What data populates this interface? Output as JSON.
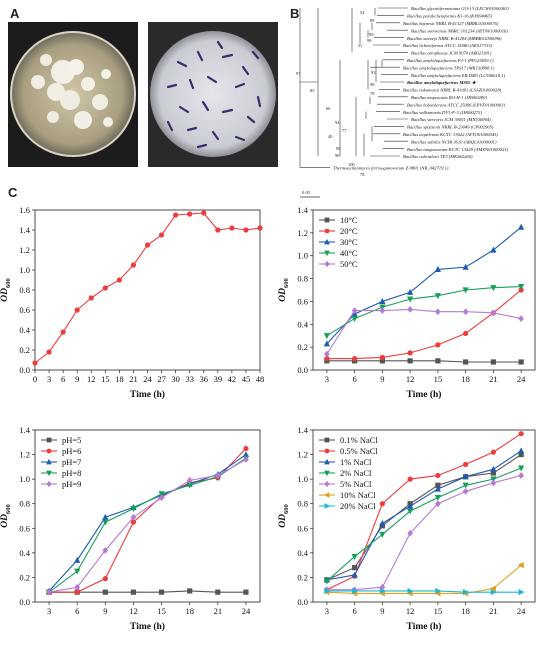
{
  "panel_labels": {
    "a": "A",
    "b": "B",
    "c": "C"
  },
  "tree": {
    "scale_label": "0.05",
    "taxa": [
      "Bacillus glycinifermentans GO-13 (LECW01000063)",
      "Bacillus paralicheniformis KJ-16 (KY694465)",
      "Bacillus haynesii NRRL B-41327 (MRBL01000076)",
      "Bacillus sonorensis NBRC 101234 (AYTN01000016)",
      "Bacillus swezeyi NRRL B-41294 (MRBK01000096)",
      "Bacillus licheniformis ATCC 14580 (AE017333)",
      "Bacillus atrophaeus JCM 9070 (AB021181)",
      "Bacillus amyloliquefaciens PJ-1 (PP125659.1)",
      "Bacillus amyloliquefaciens TPS17 (MK130898.1)",
      "Bacillus amyloliquefaciens EB.DM3 (LC506618.1)",
      "Bacillus amyloliquefaciens MS05 ★",
      "Bacillus nakamurai NRRL B-41091 (LSAZ01000028)",
      "Bacillus mojavensis RO-H-1 (JH600280)",
      "Bacillus halotolerans ATCC 25096 (LPVF01000003)",
      "Bacillus vallismortis DV1-F-3 (JH600273)",
      "Bacillus stercoris JCM 30051 (MN536904)",
      "Bacillus spizizenii NRRL B-23049 (CP002905)",
      "Bacillus tequilensis KCTC 13622 (AYTO01000043)",
      "Bacillus subtilis NCIB 3610 (ABQL01000001)",
      "Bacillus inaquosorum KCTC 13429 (AMXN01000021)",
      "Bacillus cabrialesii TE3 (MK462260)",
      "Thermoactinomyces ferrisoganovorum Z-9801 (NR_042719.1)"
    ],
    "bootstrap": [
      "54",
      "89",
      "99",
      "98",
      "77",
      "97",
      "93",
      "98",
      "78",
      "85",
      "60",
      "94",
      "77",
      "40",
      "98",
      "96",
      "100",
      "78"
    ]
  },
  "chart_data": [
    {
      "type": "line",
      "xlabel": "Time (h)",
      "ylabel": "OD600",
      "xlim": [
        0,
        48
      ],
      "ylim": [
        0,
        1.6
      ],
      "xticks": [
        0,
        3,
        6,
        9,
        12,
        15,
        18,
        21,
        24,
        27,
        30,
        33,
        36,
        39,
        42,
        45,
        48
      ],
      "yticks": [
        "0.0",
        "0.2",
        "0.4",
        "0.6",
        "0.8",
        "1.0",
        "1.2",
        "1.4",
        "1.6"
      ],
      "series": [
        {
          "color": "#ee3b3b",
          "marker": "circle",
          "x": [
            0,
            3,
            6,
            9,
            12,
            15,
            18,
            21,
            24,
            27,
            30,
            33,
            36,
            39,
            42,
            45,
            48
          ],
          "values": [
            0.07,
            0.18,
            0.38,
            0.6,
            0.72,
            0.82,
            0.9,
            1.05,
            1.25,
            1.35,
            1.55,
            1.56,
            1.57,
            1.4,
            1.42,
            1.4,
            1.42
          ]
        }
      ]
    },
    {
      "type": "line",
      "xlabel": "Time (h)",
      "ylabel": "OD600",
      "xlim": [
        1.5,
        25.5
      ],
      "ylim": [
        0,
        1.4
      ],
      "xticks": [
        3,
        6,
        9,
        12,
        15,
        18,
        21,
        24
      ],
      "yticks": [
        "0.0",
        "0.2",
        "0.4",
        "0.6",
        "0.8",
        "1.0",
        "1.2",
        "1.4"
      ],
      "legend_position": "top-left",
      "series": [
        {
          "name": "10°C",
          "color": "#555555",
          "marker": "square",
          "x": [
            3,
            6,
            9,
            12,
            15,
            18,
            21,
            24
          ],
          "values": [
            0.08,
            0.08,
            0.08,
            0.08,
            0.08,
            0.07,
            0.07,
            0.07
          ]
        },
        {
          "name": "20°C",
          "color": "#ee3b3b",
          "marker": "circle",
          "x": [
            3,
            6,
            9,
            12,
            15,
            18,
            21,
            24
          ],
          "values": [
            0.1,
            0.1,
            0.11,
            0.15,
            0.22,
            0.32,
            0.5,
            0.7
          ]
        },
        {
          "name": "30°C",
          "color": "#1f5bb5",
          "marker": "triangle-up",
          "x": [
            3,
            6,
            9,
            12,
            15,
            18,
            21,
            24
          ],
          "values": [
            0.23,
            0.49,
            0.6,
            0.68,
            0.88,
            0.9,
            1.05,
            1.25
          ]
        },
        {
          "name": "40°C",
          "color": "#15a05a",
          "marker": "triangle-down",
          "x": [
            3,
            6,
            9,
            12,
            15,
            18,
            21,
            24
          ],
          "values": [
            0.3,
            0.45,
            0.55,
            0.62,
            0.65,
            0.7,
            0.72,
            0.73
          ]
        },
        {
          "name": "50°C",
          "color": "#b57ad6",
          "marker": "diamond",
          "x": [
            3,
            6,
            9,
            12,
            15,
            18,
            21,
            24
          ],
          "values": [
            0.14,
            0.52,
            0.52,
            0.53,
            0.51,
            0.51,
            0.5,
            0.45
          ]
        }
      ]
    },
    {
      "type": "line",
      "xlabel": "Time (h)",
      "ylabel": "OD600",
      "xlim": [
        1.5,
        25.5
      ],
      "ylim": [
        0,
        1.4
      ],
      "xticks": [
        3,
        6,
        9,
        12,
        15,
        18,
        21,
        24
      ],
      "yticks": [
        "0.0",
        "0.2",
        "0.4",
        "0.6",
        "0.8",
        "1.0",
        "1.2",
        "1.4"
      ],
      "legend_position": "top-left",
      "series": [
        {
          "name": "pH=5",
          "color": "#555555",
          "marker": "square",
          "x": [
            3,
            6,
            9,
            12,
            15,
            18,
            21,
            24
          ],
          "values": [
            0.08,
            0.08,
            0.08,
            0.08,
            0.08,
            0.09,
            0.08,
            0.08
          ]
        },
        {
          "name": "pH=6",
          "color": "#ee3b3b",
          "marker": "circle",
          "x": [
            3,
            6,
            9,
            12,
            15,
            18,
            21,
            24
          ],
          "values": [
            0.08,
            0.08,
            0.19,
            0.65,
            0.86,
            0.97,
            1.01,
            1.25
          ]
        },
        {
          "name": "pH=7",
          "color": "#1f5bb5",
          "marker": "triangle-up",
          "x": [
            3,
            6,
            9,
            12,
            15,
            18,
            21,
            24
          ],
          "values": [
            0.09,
            0.34,
            0.69,
            0.77,
            0.87,
            0.96,
            1.04,
            1.2
          ]
        },
        {
          "name": "pH=8",
          "color": "#15a05a",
          "marker": "triangle-down",
          "x": [
            3,
            6,
            9,
            12,
            15,
            18,
            21,
            24
          ],
          "values": [
            0.08,
            0.25,
            0.65,
            0.76,
            0.88,
            0.95,
            1.02,
            1.17
          ]
        },
        {
          "name": "pH=9",
          "color": "#b57ad6",
          "marker": "diamond",
          "x": [
            3,
            6,
            9,
            12,
            15,
            18,
            21,
            24
          ],
          "values": [
            0.08,
            0.12,
            0.42,
            0.69,
            0.85,
            0.99,
            1.03,
            1.16
          ]
        }
      ]
    },
    {
      "type": "line",
      "xlabel": "Time (h)",
      "ylabel": "OD600",
      "xlim": [
        1.5,
        25.5
      ],
      "ylim": [
        0,
        1.4
      ],
      "xticks": [
        3,
        6,
        9,
        12,
        15,
        18,
        21,
        24
      ],
      "yticks": [
        "0.0",
        "0.2",
        "0.4",
        "0.6",
        "0.8",
        "1.0",
        "1.2",
        "1.4"
      ],
      "legend_position": "top-left",
      "series": [
        {
          "name": "0.1% NaCl",
          "color": "#555555",
          "marker": "square",
          "x": [
            3,
            6,
            9,
            12,
            15,
            18,
            21,
            24
          ],
          "values": [
            0.18,
            0.28,
            0.62,
            0.8,
            0.95,
            1.02,
            1.05,
            1.2
          ]
        },
        {
          "name": "0.5% NaCl",
          "color": "#ee3b3b",
          "marker": "circle",
          "x": [
            3,
            6,
            9,
            12,
            15,
            18,
            21,
            24
          ],
          "values": [
            0.1,
            0.21,
            0.8,
            1.0,
            1.03,
            1.12,
            1.22,
            1.37
          ]
        },
        {
          "name": "1% NaCl",
          "color": "#1f5bb5",
          "marker": "triangle-up",
          "x": [
            3,
            6,
            9,
            12,
            15,
            18,
            21,
            24
          ],
          "values": [
            0.18,
            0.22,
            0.64,
            0.78,
            0.92,
            1.02,
            1.08,
            1.23
          ]
        },
        {
          "name": "2% NaCl",
          "color": "#15a05a",
          "marker": "triangle-down",
          "x": [
            3,
            6,
            9,
            12,
            15,
            18,
            21,
            24
          ],
          "values": [
            0.17,
            0.37,
            0.55,
            0.74,
            0.85,
            0.95,
            1.0,
            1.09
          ]
        },
        {
          "name": "5% NaCl",
          "color": "#b57ad6",
          "marker": "diamond",
          "x": [
            3,
            6,
            9,
            12,
            15,
            18,
            21,
            24
          ],
          "values": [
            0.1,
            0.1,
            0.12,
            0.56,
            0.8,
            0.9,
            0.97,
            1.03
          ]
        },
        {
          "name": "10% NaCl",
          "color": "#e0a020",
          "marker": "triangle-left",
          "x": [
            3,
            6,
            9,
            12,
            15,
            18,
            21,
            24
          ],
          "values": [
            0.08,
            0.07,
            0.07,
            0.07,
            0.07,
            0.07,
            0.11,
            0.3
          ]
        },
        {
          "name": "20% NaCl",
          "color": "#1ab7d8",
          "marker": "triangle-right",
          "x": [
            3,
            6,
            9,
            12,
            15,
            18,
            21,
            24
          ],
          "values": [
            0.09,
            0.09,
            0.09,
            0.09,
            0.09,
            0.08,
            0.08,
            0.08
          ]
        }
      ]
    }
  ]
}
